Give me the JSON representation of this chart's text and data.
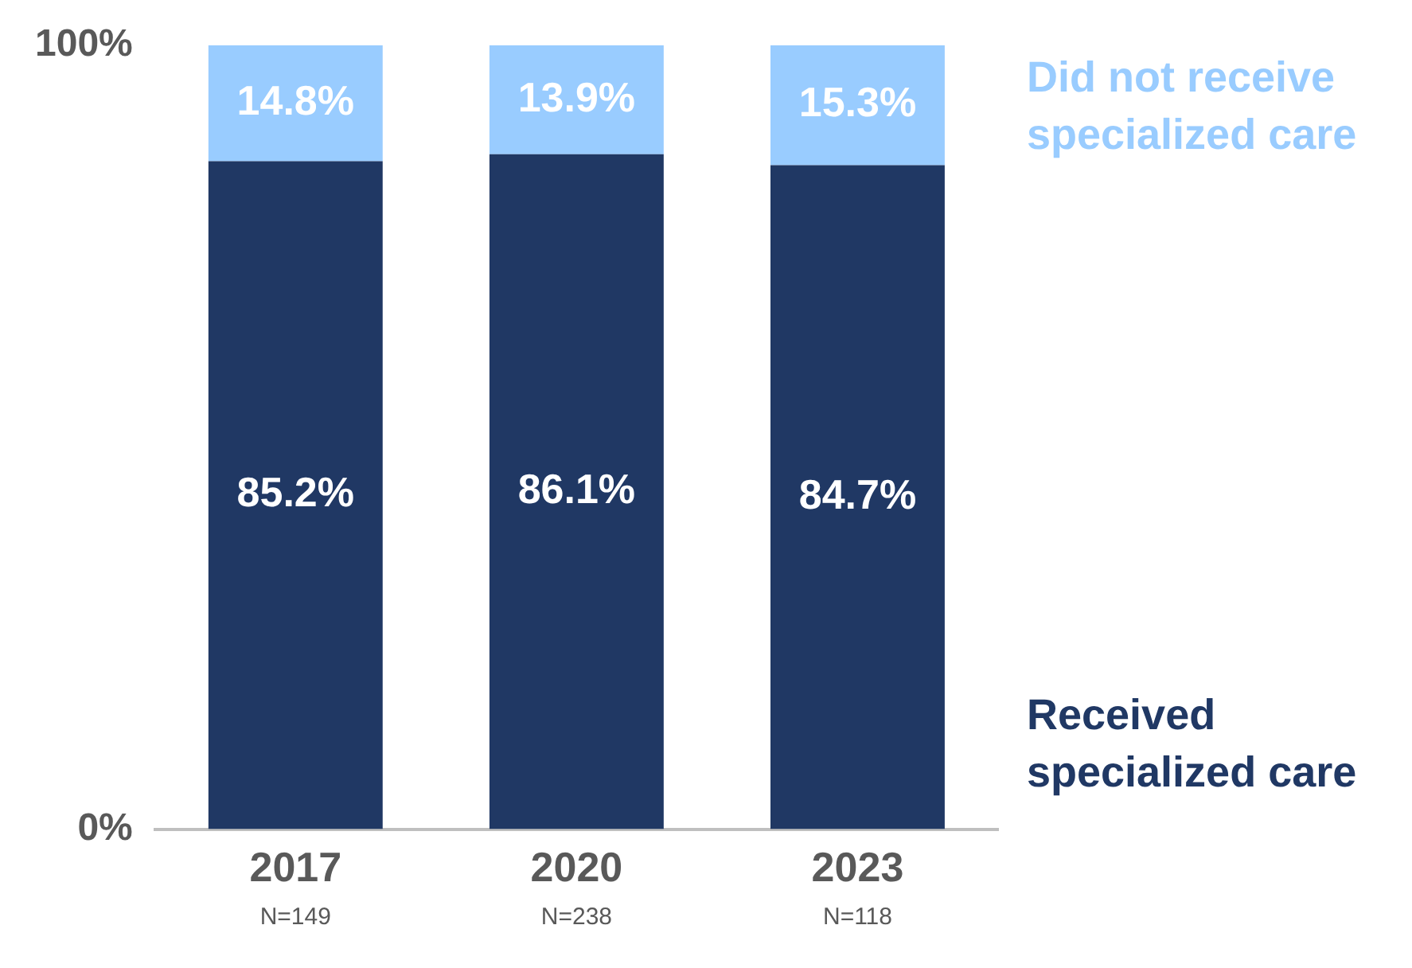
{
  "chart_data": {
    "type": "bar",
    "stacked": true,
    "categories": [
      "2017",
      "2020",
      "2023"
    ],
    "series": [
      {
        "name": "Received specialized care",
        "color": "#203864",
        "values": [
          85.2,
          86.1,
          84.7
        ],
        "value_labels": [
          "85.2%",
          "86.1%",
          "84.7%"
        ]
      },
      {
        "name": "Did not receive specialized care",
        "color": "#99ccff",
        "values": [
          14.8,
          13.9,
          15.3
        ],
        "value_labels": [
          "14.8%",
          "13.9%",
          "15.3%"
        ]
      }
    ],
    "ylim": [
      0,
      100
    ],
    "yticks": [
      {
        "value": 0,
        "label": "0%"
      },
      {
        "value": 100,
        "label": "100%"
      }
    ],
    "grid": false,
    "legend": false,
    "annotations": [
      "N=149",
      "N=238",
      "N=118"
    ]
  }
}
